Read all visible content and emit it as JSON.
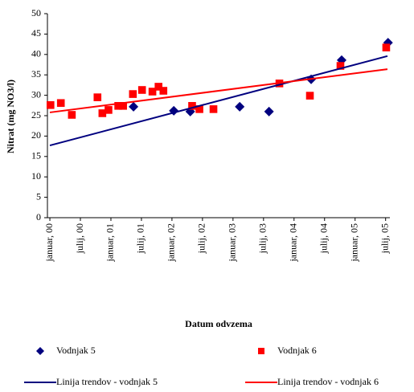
{
  "chart_data": {
    "type": "scatter",
    "ylabel": "Nitrat (mg NO3/l)",
    "xlabel": "Datum odvzema",
    "ylim": [
      0,
      50
    ],
    "yticks": [
      0,
      5,
      10,
      15,
      20,
      25,
      30,
      35,
      40,
      45,
      50
    ],
    "xlim": [
      -0.04,
      5.57
    ],
    "xticks": [
      {
        "value": 0,
        "label": "januar, 00"
      },
      {
        "value": 0.5,
        "label": "julij, 00"
      },
      {
        "value": 1,
        "label": "januar, 01"
      },
      {
        "value": 1.5,
        "label": "julij, 01"
      },
      {
        "value": 2,
        "label": "januar, 02"
      },
      {
        "value": 2.5,
        "label": "julij, 02"
      },
      {
        "value": 3,
        "label": "januar, 03"
      },
      {
        "value": 3.5,
        "label": "julij, 03"
      },
      {
        "value": 4,
        "label": "januar, 04"
      },
      {
        "value": 4.5,
        "label": "julij, 04"
      },
      {
        "value": 5,
        "label": "januar, 05"
      },
      {
        "value": 5.5,
        "label": "julij, 05"
      }
    ],
    "series": [
      {
        "name": "Vodnjak 5",
        "color": "#00007f",
        "marker": "diamond",
        "x": [
          1.37,
          2.03,
          2.3,
          3.11,
          3.59,
          4.28,
          4.78,
          5.54
        ],
        "values": [
          27.2,
          26.2,
          26.0,
          27.2,
          26.0,
          33.9,
          38.6,
          42.9
        ]
      },
      {
        "name": "Vodnjak 6",
        "color": "#ff0000",
        "marker": "square",
        "x": [
          0.01,
          0.18,
          0.36,
          0.78,
          0.86,
          0.96,
          1.12,
          1.2,
          1.36,
          1.51,
          1.68,
          1.78,
          1.86,
          2.33,
          2.45,
          2.68,
          3.76,
          4.26,
          4.76,
          5.51
        ],
        "values": [
          27.6,
          28.1,
          25.2,
          29.5,
          25.6,
          26.4,
          27.4,
          27.4,
          30.3,
          31.3,
          30.9,
          32.1,
          31.1,
          27.4,
          26.6,
          26.6,
          32.9,
          29.9,
          37.2,
          41.7
        ]
      },
      {
        "name": "Linija trendov - vodnjak 5",
        "color": "#00007f",
        "marker": "line",
        "x": [
          0,
          5.53
        ],
        "values": [
          17.7,
          39.6
        ]
      },
      {
        "name": "Linija trendov - vodnjak 6",
        "color": "#ff0000",
        "marker": "line",
        "x": [
          0,
          5.53
        ],
        "values": [
          25.8,
          36.4
        ]
      }
    ]
  }
}
